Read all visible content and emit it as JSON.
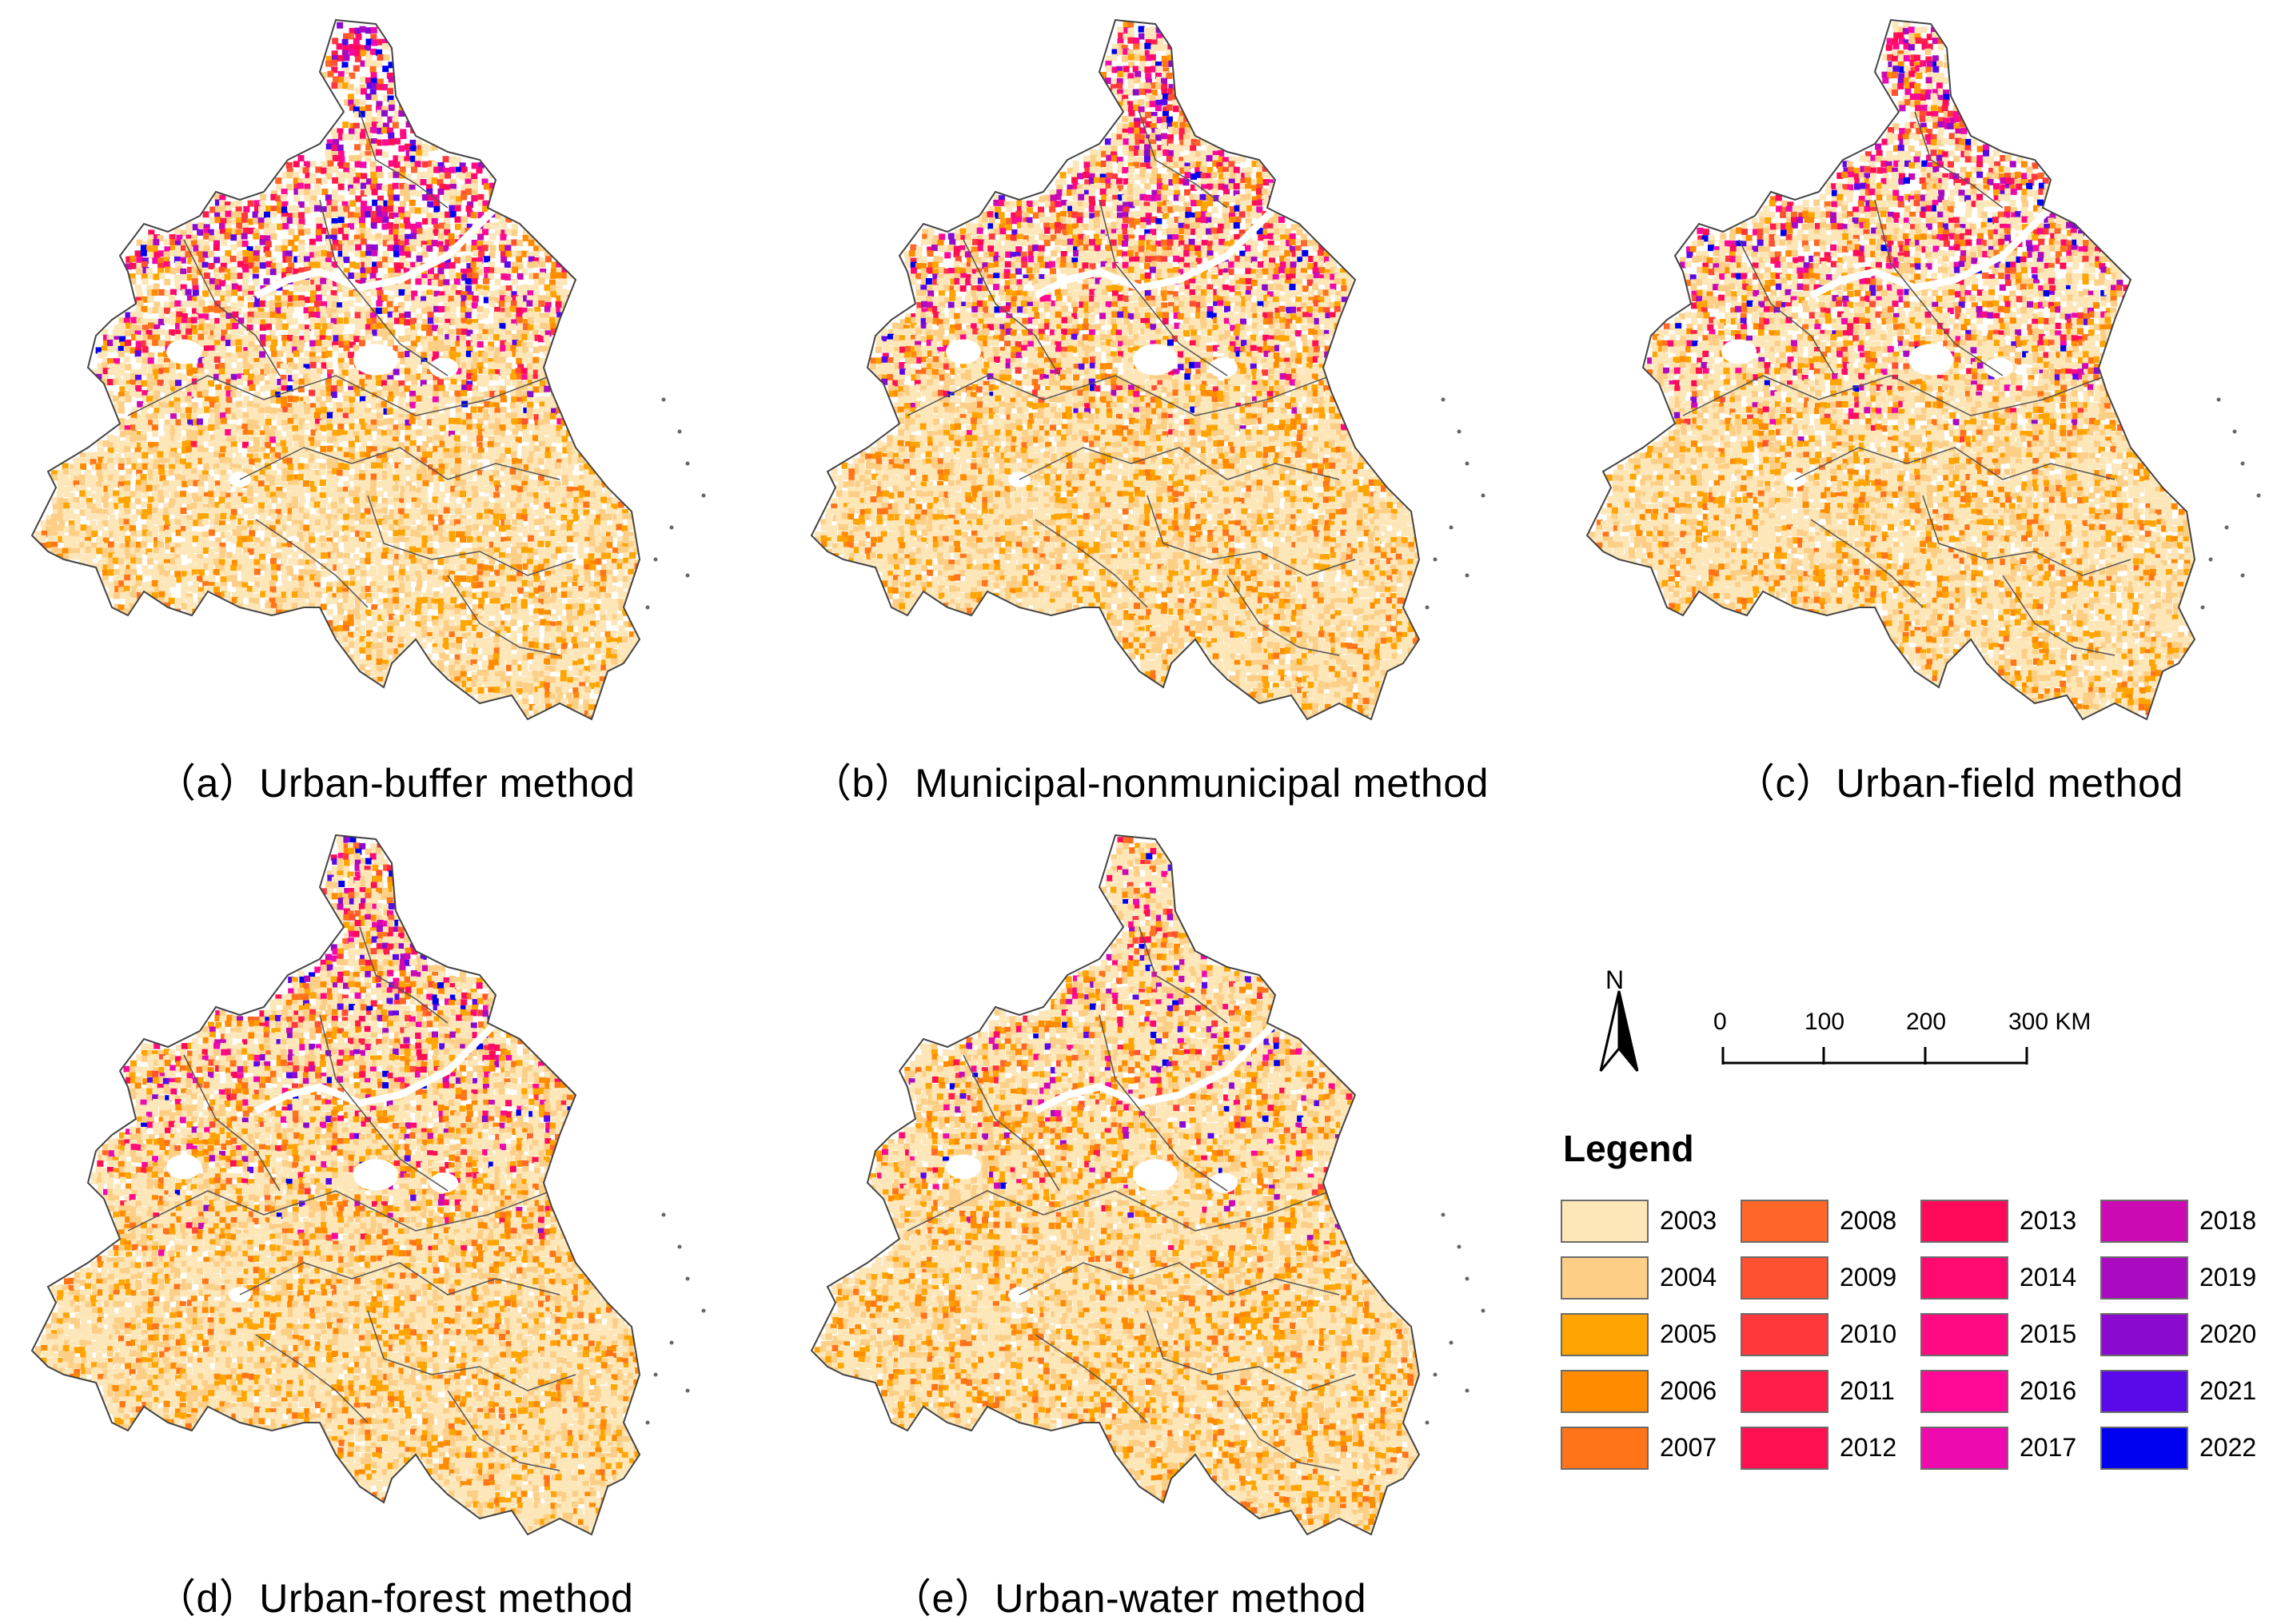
{
  "panels": [
    {
      "caption": "（a）Urban-buffer method",
      "profile": "buffer"
    },
    {
      "caption": "（b）Municipal-nonmunicipal method",
      "profile": "municipal"
    },
    {
      "caption": "（c）Urban-field method",
      "profile": "field"
    },
    {
      "caption": "（d）Urban-forest method",
      "profile": "forest"
    },
    {
      "caption": "（e）Urban-water method",
      "profile": "water"
    }
  ],
  "north_arrow": {
    "label": "N"
  },
  "scale_bar": {
    "ticks": [
      "0",
      "100",
      "200",
      "300 KM"
    ]
  },
  "legend": {
    "title": "Legend",
    "items": [
      {
        "year": "2003",
        "color": "#FDE6B8"
      },
      {
        "year": "2004",
        "color": "#FDCF86"
      },
      {
        "year": "2005",
        "color": "#FFA400"
      },
      {
        "year": "2006",
        "color": "#FF8C00"
      },
      {
        "year": "2007",
        "color": "#FF7418"
      },
      {
        "year": "2008",
        "color": "#FF6628"
      },
      {
        "year": "2009",
        "color": "#FF5030"
      },
      {
        "year": "2010",
        "color": "#FF383C"
      },
      {
        "year": "2011",
        "color": "#FF1E48"
      },
      {
        "year": "2012",
        "color": "#FF1050"
      },
      {
        "year": "2013",
        "color": "#FF0A5A"
      },
      {
        "year": "2014",
        "color": "#FF0A6E"
      },
      {
        "year": "2015",
        "color": "#FF0A82"
      },
      {
        "year": "2016",
        "color": "#FF0A96"
      },
      {
        "year": "2017",
        "color": "#EE0AAE"
      },
      {
        "year": "2018",
        "color": "#CC0AB4"
      },
      {
        "year": "2019",
        "color": "#AA0AC0"
      },
      {
        "year": "2020",
        "color": "#8A0AD0"
      },
      {
        "year": "2021",
        "color": "#5A0AE8"
      },
      {
        "year": "2022",
        "color": "#0000F0"
      }
    ]
  }
}
